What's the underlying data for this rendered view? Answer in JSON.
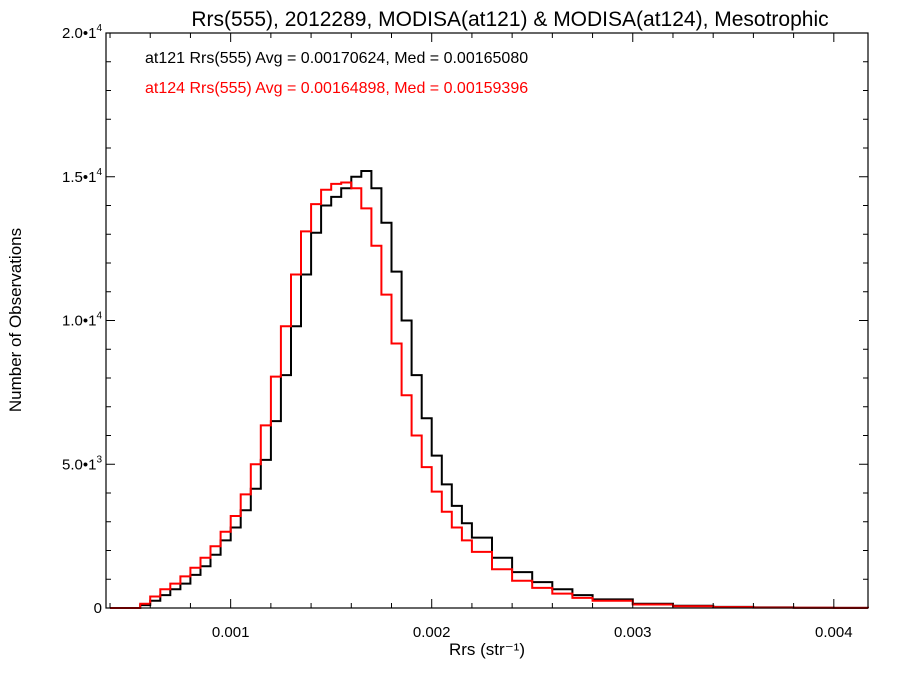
{
  "chart_data": {
    "type": "line",
    "title": "Rrs(555), 2012289, MODISA(at121) & MODISA(at124), Mesotrophic",
    "xlabel": "Rrs (str⁻¹)",
    "ylabel": "Number of Observations",
    "xlim": [
      0.00038,
      0.00417
    ],
    "ylim": [
      0,
      20000
    ],
    "x_ticks": [
      {
        "value": 0.001,
        "label": "0.001"
      },
      {
        "value": 0.002,
        "label": "0.002"
      },
      {
        "value": 0.003,
        "label": "0.003"
      },
      {
        "value": 0.004,
        "label": "0.004"
      }
    ],
    "y_ticks": [
      {
        "value": 0,
        "mantissa": "0",
        "exp": ""
      },
      {
        "value": 5000,
        "mantissa": "5.0•1",
        "exp": "3"
      },
      {
        "value": 10000,
        "mantissa": "1.0•1",
        "exp": "4"
      },
      {
        "value": 15000,
        "mantissa": "1.5•1",
        "exp": "4"
      },
      {
        "value": 20000,
        "mantissa": "2.0•1",
        "exp": "4"
      }
    ],
    "grid": false,
    "series": [
      {
        "name": "at121",
        "color": "#000000",
        "label": "at121 Rrs(555) Avg = 0.00170624, Med = 0.00165080",
        "x": [
          0.0004,
          0.0005,
          0.00055,
          0.0006,
          0.00065,
          0.0007,
          0.00075,
          0.0008,
          0.00085,
          0.0009,
          0.00095,
          0.001,
          0.00105,
          0.0011,
          0.00115,
          0.0012,
          0.00125,
          0.0013,
          0.00135,
          0.0014,
          0.00145,
          0.0015,
          0.00155,
          0.0016,
          0.00165,
          0.0017,
          0.00175,
          0.0018,
          0.00185,
          0.0019,
          0.00195,
          0.002,
          0.00205,
          0.0021,
          0.00215,
          0.0022,
          0.0023,
          0.0024,
          0.0025,
          0.0026,
          0.0027,
          0.0028,
          0.003,
          0.0032,
          0.0034,
          0.0036,
          0.0038,
          0.004,
          0.00417
        ],
        "y": [
          0,
          0,
          100,
          250,
          450,
          650,
          850,
          1150,
          1450,
          1850,
          2350,
          2800,
          3400,
          4150,
          5150,
          6500,
          8100,
          9800,
          11600,
          13050,
          14000,
          14300,
          14600,
          15000,
          15200,
          14600,
          13400,
          11700,
          10000,
          8100,
          6600,
          5300,
          4300,
          3550,
          2950,
          2450,
          1750,
          1250,
          900,
          650,
          450,
          300,
          150,
          80,
          40,
          20,
          10,
          5,
          0
        ]
      },
      {
        "name": "at124",
        "color": "#ff0000",
        "label": "at124 Rrs(555) Avg = 0.00164898, Med = 0.00159396",
        "x": [
          0.0004,
          0.0005,
          0.00055,
          0.0006,
          0.00065,
          0.0007,
          0.00075,
          0.0008,
          0.00085,
          0.0009,
          0.00095,
          0.001,
          0.00105,
          0.0011,
          0.00115,
          0.0012,
          0.00125,
          0.0013,
          0.00135,
          0.0014,
          0.00145,
          0.0015,
          0.00155,
          0.0016,
          0.00165,
          0.0017,
          0.00175,
          0.0018,
          0.00185,
          0.0019,
          0.00195,
          0.002,
          0.00205,
          0.0021,
          0.00215,
          0.0022,
          0.0023,
          0.0024,
          0.0025,
          0.0026,
          0.0027,
          0.0028,
          0.003,
          0.0032,
          0.0034,
          0.0036,
          0.0038,
          0.004,
          0.00417
        ],
        "y": [
          0,
          0,
          150,
          400,
          650,
          850,
          1100,
          1400,
          1750,
          2150,
          2650,
          3200,
          3950,
          5000,
          6350,
          8050,
          9800,
          11600,
          13100,
          14050,
          14550,
          14750,
          14800,
          14600,
          13900,
          12600,
          10900,
          9200,
          7400,
          6000,
          4900,
          4050,
          3350,
          2800,
          2350,
          1950,
          1350,
          950,
          700,
          500,
          350,
          250,
          120,
          60,
          30,
          15,
          8,
          4,
          0
        ]
      }
    ]
  }
}
